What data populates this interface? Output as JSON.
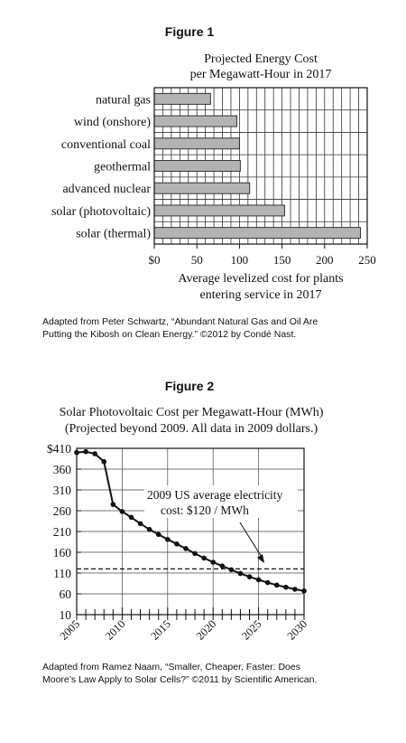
{
  "figure1": {
    "heading": "Figure 1",
    "credit_lines": [
      "Adapted from Peter Schwartz, “Abundant Natural Gas and Oil Are",
      "Putting the Kibosh on Clean Energy.” ©2012 by Condé Nast."
    ]
  },
  "figure2": {
    "heading": "Figure 2",
    "credit_lines": [
      "Adapted from Ramez Naam, “Smaller, Cheaper, Faster: Does",
      "Moore’s Law Apply to Solar Cells?” ©2011 by Scientific American."
    ]
  },
  "chart_data": [
    {
      "type": "bar",
      "orientation": "horizontal",
      "title_lines": [
        "Projected Energy Cost",
        "per Megawatt-Hour in 2017"
      ],
      "xlabel_lines": [
        "Average levelized cost for plants",
        "entering service in 2017"
      ],
      "categories": [
        "natural gas",
        "wind (onshore)",
        "conventional coal",
        "geothermal",
        "advanced nuclear",
        "solar (photovoltaic)",
        "solar (thermal)"
      ],
      "values": [
        66,
        97,
        100,
        101,
        112,
        153,
        242
      ],
      "xlim": [
        0,
        250
      ],
      "xticks": [
        0,
        50,
        100,
        150,
        200,
        250
      ],
      "xtick_labels": [
        "$0",
        "50",
        "100",
        "150",
        "200",
        "250"
      ],
      "grid": true,
      "bar_color": "#b3b3b3"
    },
    {
      "type": "line",
      "title_lines": [
        "Solar Photovoltaic Cost per Megawatt-Hour (MWh)",
        "(Projected beyond 2009. All data in 2009 dollars.)"
      ],
      "x": [
        2005,
        2006,
        2007,
        2008,
        2009,
        2010,
        2011,
        2012,
        2013,
        2014,
        2015,
        2016,
        2017,
        2018,
        2019,
        2020,
        2021,
        2022,
        2023,
        2024,
        2025,
        2026,
        2027,
        2028,
        2029,
        2030
      ],
      "y": [
        400,
        402,
        397,
        378,
        275,
        258,
        244,
        229,
        215,
        203,
        191,
        180,
        169,
        157,
        146,
        136,
        127,
        118,
        109,
        101,
        94,
        87,
        81,
        76,
        71,
        67
      ],
      "xlim": [
        2005,
        2030
      ],
      "ylim": [
        10,
        410
      ],
      "yticks": [
        10,
        60,
        110,
        160,
        210,
        260,
        310,
        360,
        410
      ],
      "ytick_labels": [
        "10",
        "60",
        "110",
        "160",
        "210",
        "260",
        "310",
        "360",
        "$410"
      ],
      "xtick_labels": [
        "2005",
        "2010",
        "2015",
        "2020",
        "2025",
        "2030"
      ],
      "reference_value": 120,
      "annotation_lines": [
        "2009 US average electricity",
        "cost: $120 / MWh"
      ],
      "grid": true
    }
  ]
}
